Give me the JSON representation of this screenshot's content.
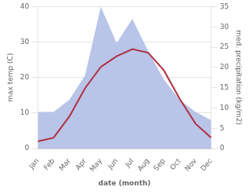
{
  "chart_data": {
    "type": "line",
    "categories": [
      "Jan",
      "Feb",
      "Mar",
      "Apr",
      "May",
      "Jun",
      "Jul",
      "Aug",
      "Sep",
      "Oct",
      "Nov",
      "Dec"
    ],
    "xlabel": "date (month)",
    "ylabel": "max temp (C)",
    "y2label": "med. precipitation (kg/m2)",
    "series": [
      {
        "type": "area",
        "color": "#b8c4e8",
        "axis": "y2",
        "values": [
          9,
          9,
          12,
          18,
          35,
          26,
          32,
          24,
          17,
          12,
          9,
          7
        ]
      },
      {
        "type": "line",
        "color": "#b03040",
        "values": [
          2,
          3,
          9,
          17,
          23,
          26,
          28,
          27,
          22,
          14,
          7,
          3
        ]
      }
    ],
    "ylim": [
      0,
      40
    ],
    "yticks": [
      0,
      10,
      20,
      30,
      40
    ],
    "y2lim": [
      0,
      35
    ],
    "y2ticks": [
      0,
      5,
      10,
      15,
      20,
      25,
      30,
      35
    ],
    "grid": true
  }
}
